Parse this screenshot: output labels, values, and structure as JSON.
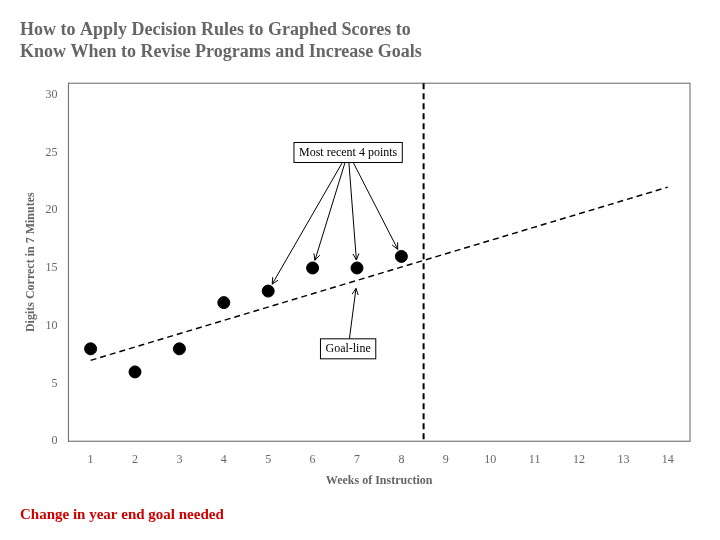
{
  "chart_data": {
    "type": "scatter",
    "title": [
      "How to Apply Decision Rules to Graphed Scores to",
      "Know When to Revise Programs and Increase Goals"
    ],
    "x_label": "Weeks of Instruction",
    "y_label": "Digits Correct in 7 Minutes",
    "series": [
      {
        "type": "scatter",
        "color": "#000000",
        "marker": "circle",
        "x": [
          1,
          2,
          3,
          4,
          5,
          6,
          7,
          8
        ],
        "values": [
          8,
          6,
          8,
          12,
          13,
          15,
          15,
          16
        ]
      },
      {
        "type": "line",
        "color": "#000000",
        "line_style": "dashed",
        "x": [
          1,
          14
        ],
        "values": [
          7,
          22
        ]
      }
    ],
    "vlines": [
      {
        "x": 8.5,
        "color": "#000000",
        "line_style": "dashed"
      }
    ],
    "annotations": [
      {
        "text": "Most recent 4 points",
        "x": 6.8,
        "y": 25.0,
        "arrows": [
          [
            5,
            13
          ],
          [
            6,
            15
          ],
          [
            7,
            15
          ],
          [
            8,
            16
          ]
        ]
      },
      {
        "text": "Goal-line",
        "x": 6.8,
        "y": 8.0,
        "arrows": [
          [
            7,
            13.923076923076923
          ]
        ]
      }
    ],
    "note": {
      "text": "Change in year end goal needed",
      "color": "#cc0000"
    },
    "xlim": [
      0.5,
      14.5
    ],
    "ylim": [
      0,
      31
    ],
    "xticks": [
      1,
      2,
      3,
      4,
      5,
      6,
      7,
      8,
      9,
      10,
      11,
      12,
      13,
      14
    ],
    "yticks": [
      0,
      5,
      10,
      15,
      20,
      25,
      30
    ],
    "grid": false
  }
}
